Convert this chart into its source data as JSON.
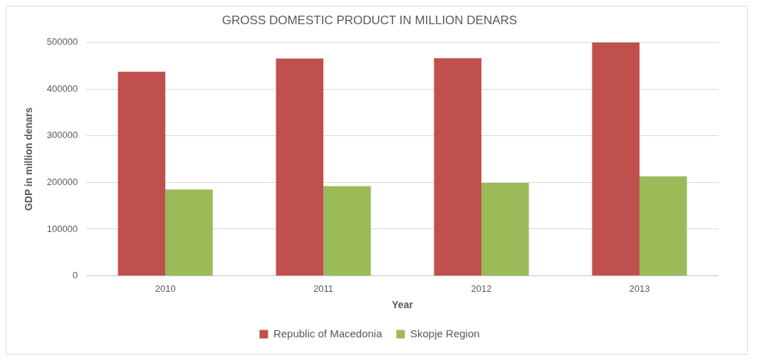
{
  "chart_data": {
    "type": "bar",
    "title": "GROSS DOMESTIC PRODUCT IN MILLION DENARS",
    "xlabel": "Year",
    "ylabel": "GDP in million denars",
    "categories": [
      "2010",
      "2011",
      "2012",
      "2013"
    ],
    "series": [
      {
        "name": "Republic of Macedonia",
        "color": "#c0504d",
        "values": [
          437000,
          465000,
          466000,
          500000
        ]
      },
      {
        "name": "Skopje Region",
        "color": "#9bbb59",
        "values": [
          185000,
          192000,
          199000,
          213000
        ]
      }
    ],
    "ylim": [
      0,
      500000
    ],
    "yticks": [
      0,
      100000,
      200000,
      300000,
      400000,
      500000
    ],
    "grid": "y",
    "legend": "bottom"
  }
}
